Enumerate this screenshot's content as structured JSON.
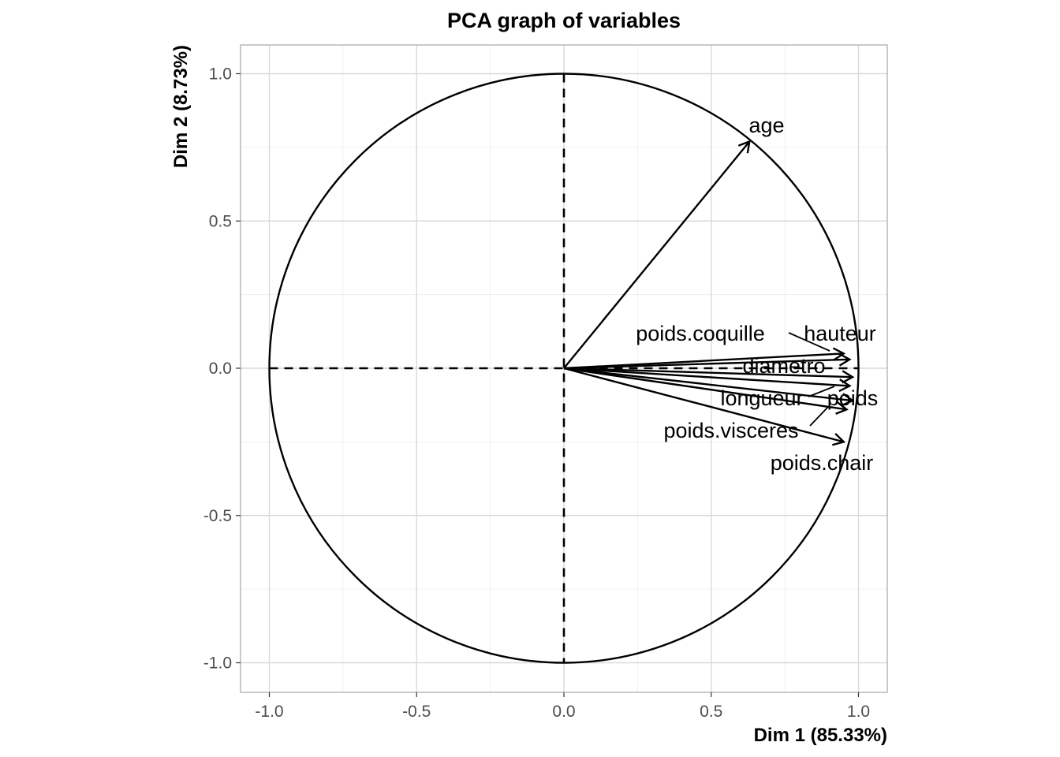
{
  "chart_data": {
    "type": "scatter",
    "title": "PCA graph of variables",
    "xlabel": "Dim 1 (85.33%)",
    "ylabel": "Dim 2 (8.73%)",
    "xlim": [
      -1.1,
      1.1
    ],
    "ylim": [
      -1.1,
      1.1
    ],
    "x_ticks": [
      -1.0,
      -0.5,
      0.0,
      0.5,
      1.0
    ],
    "y_ticks": [
      -1.0,
      -0.5,
      0.0,
      0.5,
      1.0
    ],
    "x_tick_labels": [
      "-1.0",
      "-0.5",
      "0.0",
      "0.5",
      "1.0"
    ],
    "y_tick_labels": [
      "-1.0",
      "-0.5",
      "0.0",
      "0.5",
      "1.0"
    ],
    "grid": true,
    "correlation_circle": true,
    "variables": [
      {
        "name": "age",
        "x": 0.63,
        "y": 0.77
      },
      {
        "name": "poids.coquille",
        "x": 0.95,
        "y": 0.05
      },
      {
        "name": "hauteur",
        "x": 0.97,
        "y": 0.03
      },
      {
        "name": "diametro",
        "x": 0.98,
        "y": -0.03
      },
      {
        "name": "longueur",
        "x": 0.97,
        "y": -0.06
      },
      {
        "name": "poids",
        "x": 0.98,
        "y": -0.11
      },
      {
        "name": "poids.visceres",
        "x": 0.96,
        "y": -0.14
      },
      {
        "name": "poids.chair",
        "x": 0.95,
        "y": -0.25
      }
    ]
  }
}
